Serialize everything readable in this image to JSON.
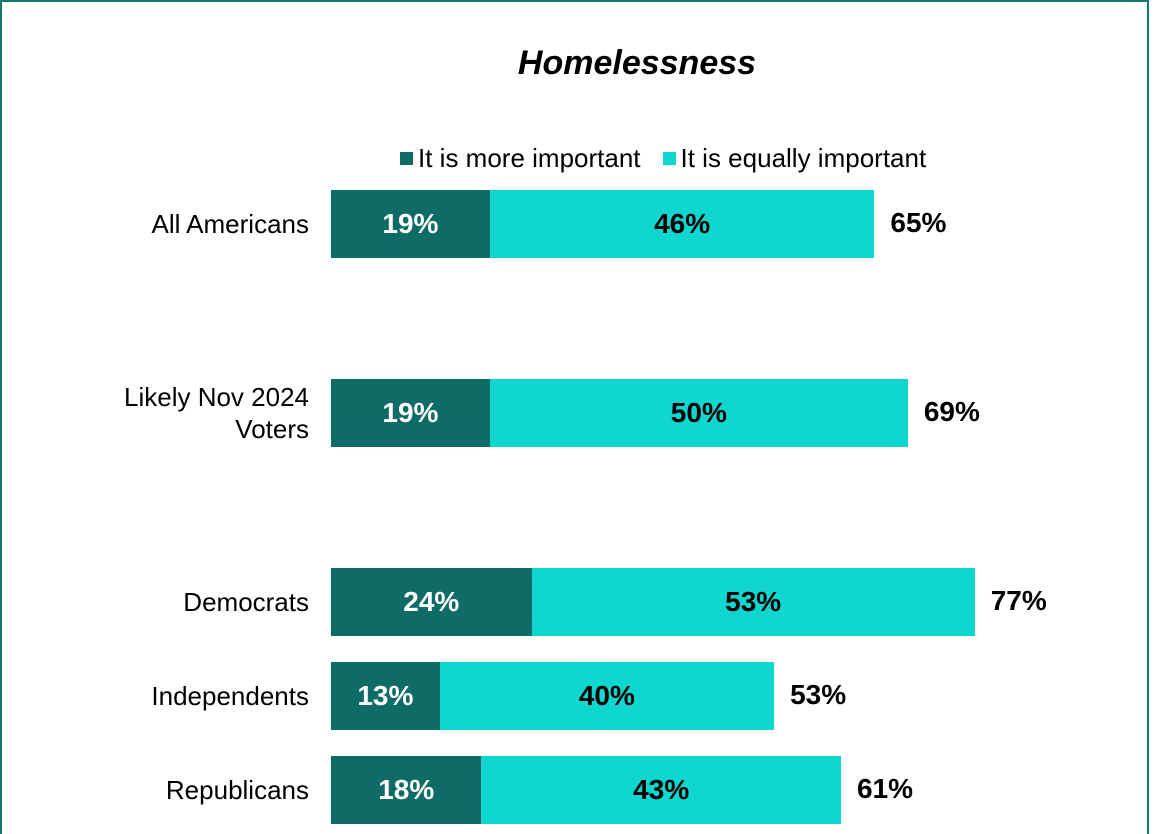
{
  "chart_data": {
    "type": "bar",
    "orientation": "horizontal",
    "stacked": true,
    "title": "Homelessness",
    "categories": [
      "All Americans",
      "Likely Nov 2024 Voters",
      "Democrats",
      "Independents",
      "Republicans"
    ],
    "category_lines": [
      [
        "All Americans"
      ],
      [
        "Likely Nov 2024",
        "Voters"
      ],
      [
        "Democrats"
      ],
      [
        "Independents"
      ],
      [
        "Republicans"
      ]
    ],
    "series": [
      {
        "name": "It is more important",
        "values": [
          19,
          19,
          24,
          13,
          18
        ],
        "labels": [
          "19%",
          "19%",
          "24%",
          "13%",
          "18%"
        ],
        "color": "#0f6b66"
      },
      {
        "name": "It is equally important",
        "values": [
          46,
          50,
          53,
          40,
          43
        ],
        "labels": [
          "46%",
          "50%",
          "53%",
          "40%",
          "43%"
        ],
        "color": "#0fd6cf"
      }
    ],
    "totals": [
      "65%",
      "69%",
      "77%",
      "53%",
      "61%"
    ],
    "legend_position": "top",
    "grid": false
  }
}
